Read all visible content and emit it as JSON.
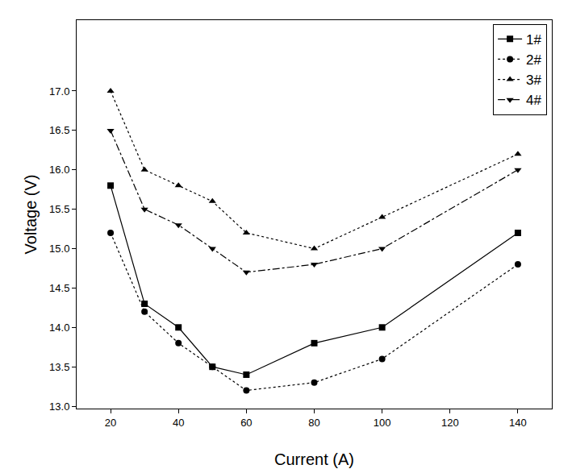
{
  "chart_data": {
    "type": "line",
    "x_label": "Current (A)",
    "y_label": "Voltage (V)",
    "x": [
      20,
      30,
      40,
      50,
      60,
      80,
      100,
      140
    ],
    "series": [
      {
        "name": "1#",
        "color": "#000000",
        "marker": "square",
        "line_style": "solid",
        "values": [
          15.8,
          14.3,
          14.0,
          13.5,
          13.4,
          13.8,
          14.0,
          15.2
        ]
      },
      {
        "name": "2#",
        "color": "#000000",
        "marker": "circle",
        "line_style": "dotted",
        "values": [
          15.2,
          14.2,
          13.8,
          13.5,
          13.2,
          13.3,
          13.6,
          14.8
        ]
      },
      {
        "name": "3#",
        "color": "#000000",
        "marker": "triangle-up",
        "line_style": "dotted",
        "values": [
          17.0,
          16.0,
          15.8,
          15.6,
          15.2,
          15.0,
          15.4,
          16.2
        ]
      },
      {
        "name": "4#",
        "color": "#000000",
        "marker": "triangle-down",
        "line_style": "dashdot",
        "values": [
          16.5,
          15.5,
          15.3,
          15.0,
          14.7,
          14.8,
          15.0,
          16.0
        ]
      }
    ],
    "xlim": [
      10,
      150
    ],
    "xticks": [
      20,
      40,
      60,
      80,
      100,
      120,
      140
    ],
    "ylim": [
      12.97,
      17.9
    ],
    "yticks": [
      {
        "value": 13.0,
        "label": "13.0"
      },
      {
        "value": 13.5,
        "label": "13.5"
      },
      {
        "value": 14.0,
        "label": "14.0"
      },
      {
        "value": 14.5,
        "label": "14.5"
      },
      {
        "value": 15.0,
        "label": "15.0"
      },
      {
        "value": 15.5,
        "label": "15.5"
      },
      {
        "value": 16.0,
        "label": "16.0"
      },
      {
        "value": 16.5,
        "label": "16.5"
      },
      {
        "value": 17.0,
        "label": "17.0"
      }
    ],
    "grid": false,
    "legend": "top right"
  }
}
